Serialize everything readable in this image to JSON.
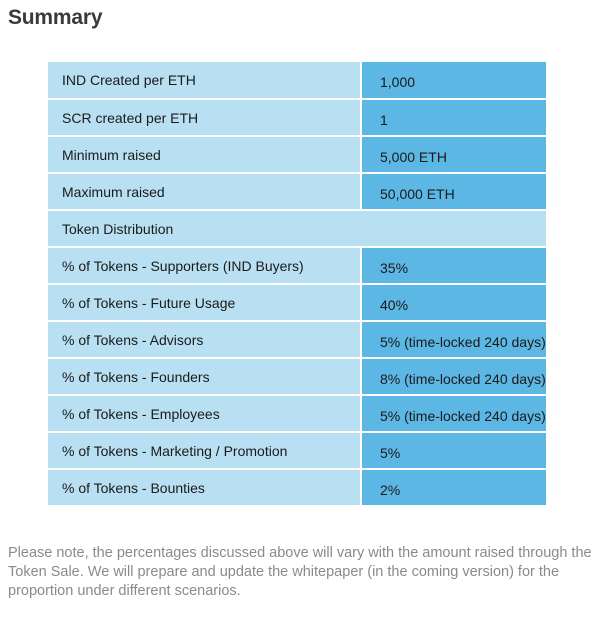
{
  "heading": "Summary",
  "rows": [
    {
      "label": "IND Created per ETH",
      "value": "1,000"
    },
    {
      "label": "SCR created per ETH",
      "value": "1"
    },
    {
      "label": "Minimum raised",
      "value": "5,000 ETH"
    },
    {
      "label": "Maximum raised",
      "value": "50,000 ETH"
    }
  ],
  "section_header": "Token Distribution",
  "distribution": [
    {
      "label": "% of Tokens - Supporters (IND Buyers)",
      "value": "35%"
    },
    {
      "label": "% of Tokens - Future Usage",
      "value": "40%"
    },
    {
      "label": "% of Tokens - Advisors",
      "value": "5% (time-locked 240 days)"
    },
    {
      "label": "% of Tokens - Founders",
      "value": "8% (time-locked 240 days)"
    },
    {
      "label": "% of Tokens - Employees",
      "value": "5% (time-locked 240 days)"
    },
    {
      "label": "% of Tokens - Marketing / Promotion",
      "value": "5%"
    },
    {
      "label": "% of Tokens - Bounties",
      "value": "2%"
    }
  ],
  "note": "Please note, the percentages discussed above will vary with the amount raised through the Token Sale. We will prepare and update the whitepaper (in the coming version) for the proportion under different scenarios.",
  "colors": {
    "label_bg": "#b9e0f2",
    "value_bg": "#5db7e4",
    "heading": "#3a3a3a",
    "note": "#8a8a8a"
  }
}
